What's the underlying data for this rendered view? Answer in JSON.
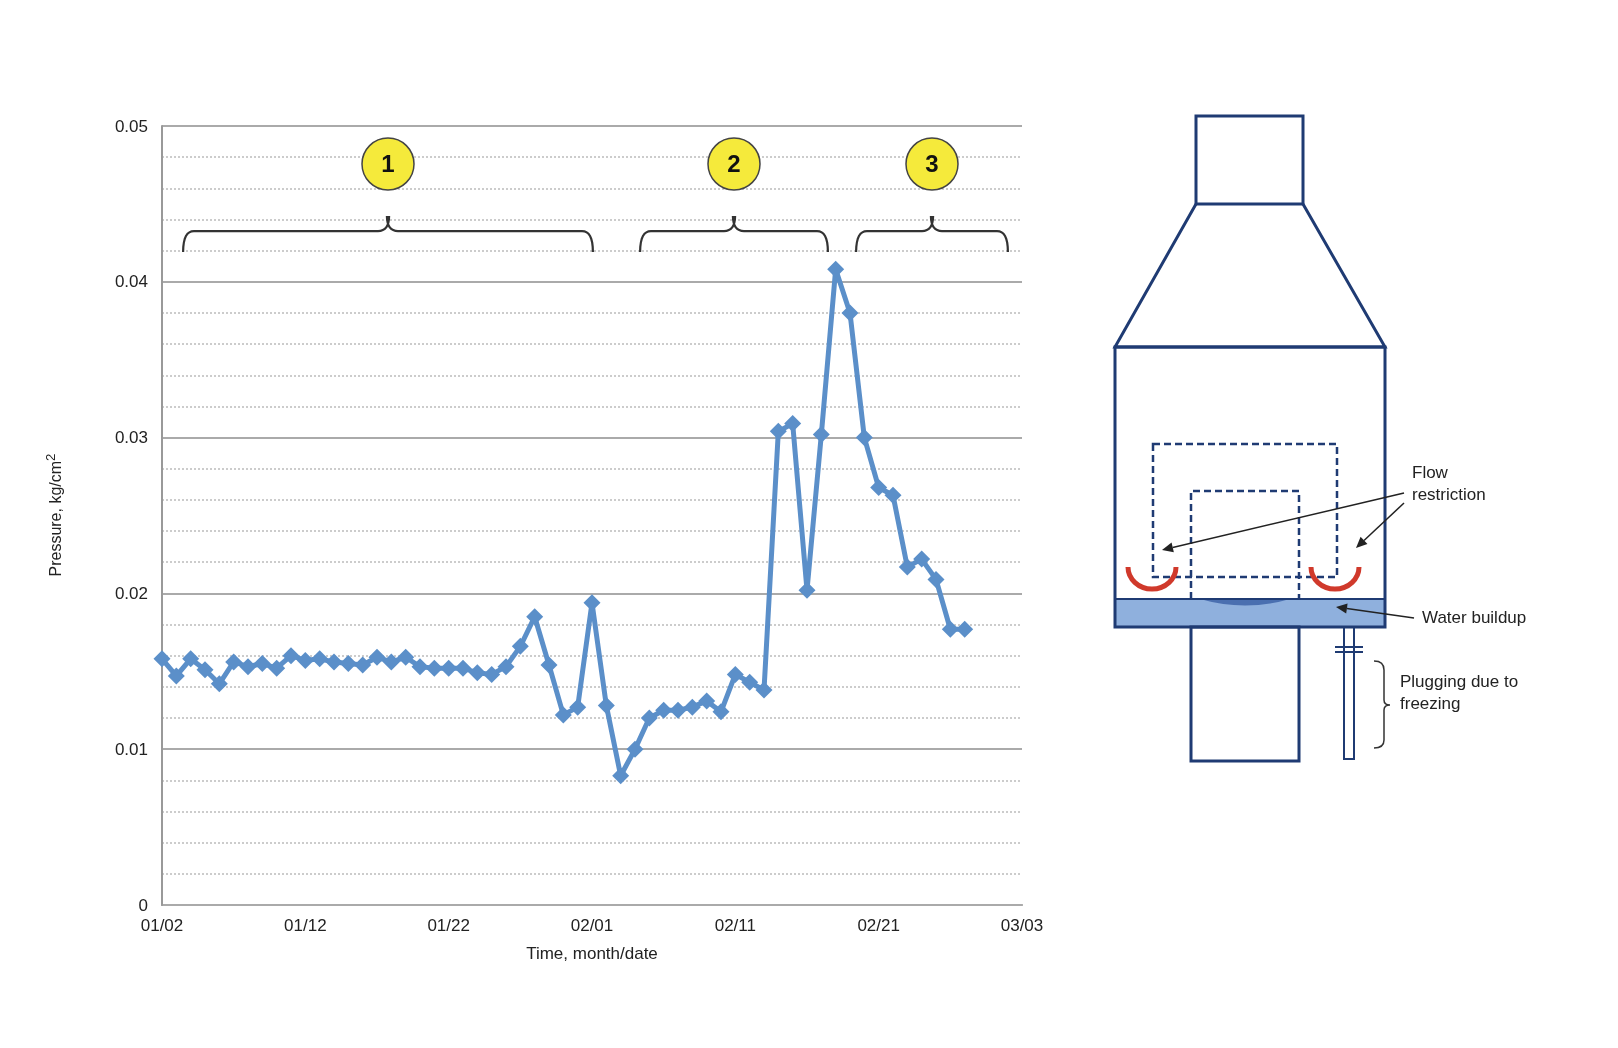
{
  "chart_data": {
    "type": "line",
    "xlabel": "Time, month/date",
    "ylabel": "Pressure, kg/cm$^{2}$",
    "x": [
      "--01-02",
      "--01-03",
      "--01-04",
      "--01-05",
      "--01-06",
      "--01-07",
      "--01-08",
      "--01-09",
      "--01-10",
      "--01-11",
      "--01-12",
      "--01-13",
      "--01-14",
      "--01-15",
      "--01-16",
      "--01-17",
      "--01-18",
      "--01-19",
      "--01-20",
      "--01-21",
      "--01-22",
      "--01-23",
      "--01-24",
      "--01-25",
      "--01-26",
      "--01-27",
      "--01-28",
      "--01-29",
      "--01-30",
      "--01-31",
      "--02-01",
      "--02-02",
      "--02-03",
      "--02-04",
      "--02-05",
      "--02-06",
      "--02-07",
      "--02-08",
      "--02-09",
      "--02-10",
      "--02-11",
      "--02-12",
      "--02-13",
      "--02-14",
      "--02-15",
      "--02-16",
      "--02-17",
      "--02-18",
      "--02-19",
      "--02-20",
      "--02-21",
      "--02-22",
      "--02-23",
      "--02-24",
      "--02-25",
      "--02-26",
      "--02-27"
    ],
    "series": [
      {
        "color": "#5b8fc9",
        "values": [
          0.0158,
          0.0147,
          0.0158,
          0.0151,
          0.0142,
          0.0156,
          0.0153,
          0.0155,
          0.0152,
          0.016,
          0.0157,
          0.0158,
          0.0156,
          0.0155,
          0.0154,
          0.0159,
          0.0156,
          0.0159,
          0.0153,
          0.0152,
          0.0152,
          0.0152,
          0.0149,
          0.0148,
          0.0153,
          0.0166,
          0.0185,
          0.0154,
          0.0122,
          0.0127,
          0.0194,
          0.0128,
          0.0083,
          0.01,
          0.012,
          0.0125,
          0.0125,
          0.0127,
          0.0131,
          0.0124,
          0.0148,
          0.0143,
          0.0138,
          0.0304,
          0.0309,
          0.0202,
          0.0302,
          0.0408,
          0.038,
          0.03,
          0.0268,
          0.0263,
          0.0217,
          0.0222,
          0.0209,
          0.0177,
          0.0177
        ]
      }
    ],
    "xlim": [
      "--01-02",
      "--03-03"
    ],
    "xticks": [
      {
        "value": "--01-02",
        "label": "01/02"
      },
      {
        "value": "--01-12",
        "label": "01/12"
      },
      {
        "value": "--01-22",
        "label": "01/22"
      },
      {
        "value": "--02-01",
        "label": "02/01"
      },
      {
        "value": "--02-11",
        "label": "02/11"
      },
      {
        "value": "--02-21",
        "label": "02/21"
      },
      {
        "value": "--03-03",
        "label": "03/03"
      }
    ],
    "ylim": [
      0,
      0.05
    ],
    "yticks": [
      0,
      0.01,
      0.02,
      0.03,
      0.04,
      0.05
    ],
    "grid": "y",
    "marker": "diamond",
    "line_style": "solid",
    "annotations": [
      "1",
      "2",
      "3",
      "Flow restriction",
      "Water buildup",
      "Plugging due to freezing"
    ]
  }
}
